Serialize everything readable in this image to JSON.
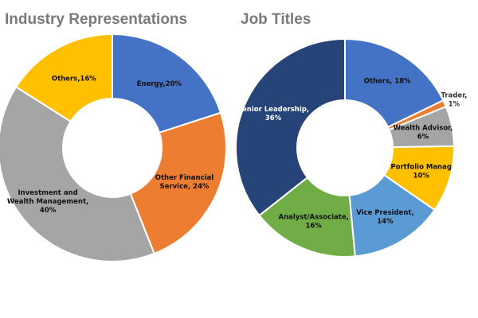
{
  "chart_data": [
    {
      "type": "donut",
      "title": "Industry Representations",
      "values": [
        20,
        24,
        40,
        16
      ],
      "value_labels": [
        [
          "Energy,20%"
        ],
        [
          "Other Financial",
          "Service, 24%"
        ],
        [
          "Investment and",
          "Wealth Management,",
          "40%"
        ],
        [
          "Others,16%"
        ]
      ],
      "colors": [
        "#4472c4",
        "#ed7d31",
        "#a5a5a5",
        "#ffc000"
      ]
    },
    {
      "type": "donut",
      "title": "Job Titles",
      "values": [
        18,
        1,
        6,
        10,
        14,
        16,
        36
      ],
      "value_labels": [
        [
          "Others, 18%"
        ],
        [
          "Trader,",
          "1%"
        ],
        [
          "Wealth Advisor,",
          "6%"
        ],
        [
          "Portfolio Manag",
          "10%"
        ],
        [
          "Vice President,",
          "14%"
        ],
        [
          "Analyst/Associate,",
          "16%"
        ],
        [
          "Senior Leadership,",
          "36%"
        ]
      ],
      "colors": [
        "#4472c4",
        "#ed7d31",
        "#a5a5a5",
        "#ffc000",
        "#5b9bd5",
        "#70ad47",
        "#264478"
      ]
    }
  ]
}
